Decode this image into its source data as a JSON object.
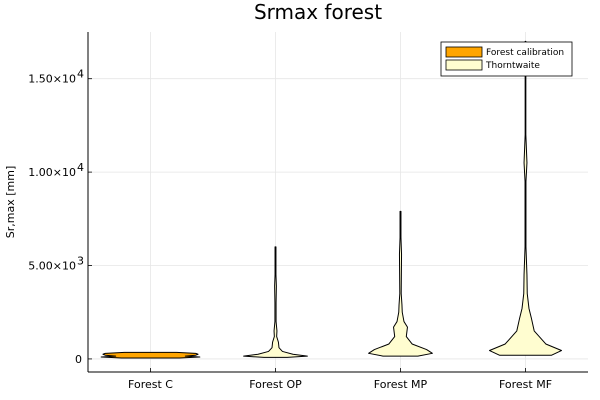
{
  "chart_data": {
    "type": "violin",
    "title": "Srmax forest",
    "xlabel": "",
    "ylabel": "Sr,max [mm]",
    "categories": [
      "Forest C",
      "Forest OP",
      "Forest MP",
      "Forest MF"
    ],
    "ylim": [
      -700,
      17500
    ],
    "yticks": [
      {
        "value": 0,
        "label": "0"
      },
      {
        "value": 5000,
        "label": "5.00×10",
        "exp": "3"
      },
      {
        "value": 10000,
        "label": "1.00×10",
        "exp": "4"
      },
      {
        "value": 15000,
        "label": "1.50×10",
        "exp": "4"
      }
    ],
    "grid": true,
    "legend_position": "top-right",
    "series": [
      {
        "name": "Forest calibration",
        "color": "#FFA500",
        "violins": [
          {
            "category": "Forest C",
            "min": 50,
            "max": 350,
            "profile": [
              [
                50,
                0.5
              ],
              [
                100,
                0.85
              ],
              [
                150,
                0.6
              ],
              [
                200,
                0.78
              ],
              [
                250,
                0.82
              ],
              [
                300,
                0.78
              ],
              [
                350,
                0.45
              ]
            ]
          }
        ]
      },
      {
        "name": "Thorntwaite",
        "color": "#FFFDD0",
        "violins": [
          {
            "category": "Forest OP",
            "min": 80,
            "max": 6000,
            "profile": [
              [
                80,
                0.2
              ],
              [
                150,
                0.55
              ],
              [
                250,
                0.3
              ],
              [
                400,
                0.12
              ],
              [
                600,
                0.06
              ],
              [
                900,
                0.05
              ],
              [
                1200,
                0.02
              ],
              [
                1500,
                0.025
              ],
              [
                2000,
                0.01
              ],
              [
                3000,
                0.01
              ],
              [
                3900,
                0.015
              ],
              [
                4500,
                0.008
              ],
              [
                6000,
                0.008
              ]
            ]
          },
          {
            "category": "Forest MP",
            "min": 150,
            "max": 7900,
            "profile": [
              [
                150,
                0.3
              ],
              [
                300,
                0.55
              ],
              [
                500,
                0.45
              ],
              [
                800,
                0.2
              ],
              [
                1200,
                0.1
              ],
              [
                1700,
                0.12
              ],
              [
                2000,
                0.06
              ],
              [
                2500,
                0.03
              ],
              [
                2900,
                0.025
              ],
              [
                3500,
                0.012
              ],
              [
                5600,
                0.018
              ],
              [
                6500,
                0.008
              ],
              [
                7900,
                0.008
              ]
            ]
          },
          {
            "category": "Forest MF",
            "min": 200,
            "max": 17000,
            "profile": [
              [
                200,
                0.45
              ],
              [
                450,
                0.62
              ],
              [
                800,
                0.35
              ],
              [
                1500,
                0.15
              ],
              [
                2200,
                0.1
              ],
              [
                2700,
                0.06
              ],
              [
                3500,
                0.03
              ],
              [
                4500,
                0.025
              ],
              [
                6000,
                0.008
              ],
              [
                9500,
                0.008
              ],
              [
                10500,
                0.025
              ],
              [
                12000,
                0.006
              ],
              [
                17000,
                0.006
              ]
            ]
          }
        ]
      }
    ]
  }
}
